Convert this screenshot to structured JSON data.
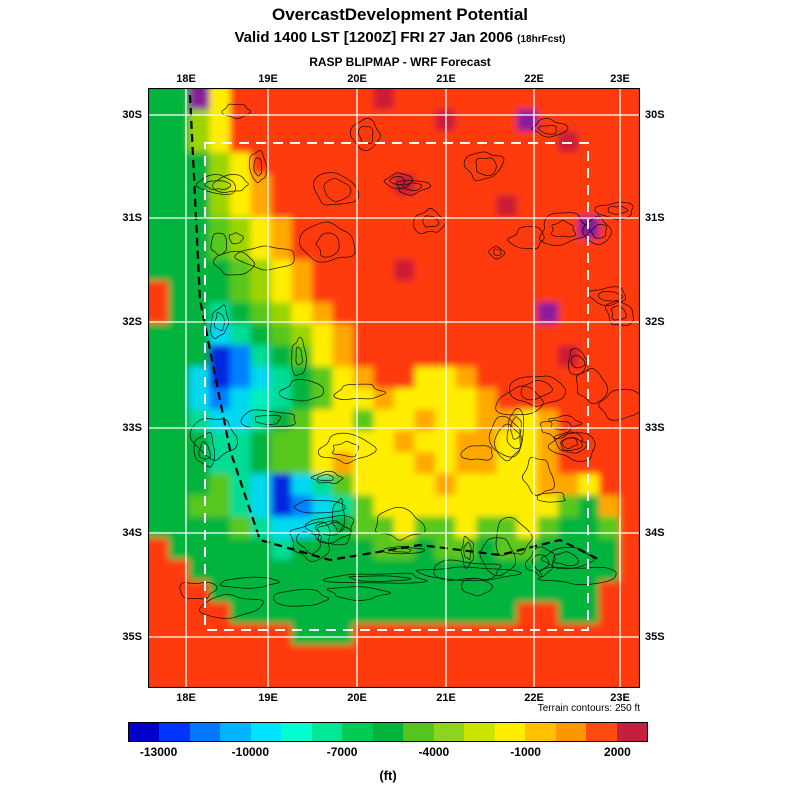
{
  "header": {
    "title": "OvercastDevelopment Potential",
    "valid_line": "Valid 1400 LST [1200Z] FRI 27 Jan 2006",
    "fcst_suffix": "(18hrFcst)",
    "model_line": "RASP BLIPMAP - WRF Forecast"
  },
  "map_note": "Terrain contours: 250 ft",
  "unit_label": "(ft)",
  "chart_data": {
    "type": "heatmap",
    "title": "OvercastDevelopment Potential",
    "subtitle": "Valid 1400 LST [1200Z] FRI 27 Jan 2006 (18hrFcst)",
    "source": "RASP BLIPMAP - WRF Forecast",
    "units": "ft",
    "x_ticks": [
      "18E",
      "19E",
      "20E",
      "21E",
      "22E",
      "23E"
    ],
    "y_ticks": [
      "30S",
      "31S",
      "32S",
      "33S",
      "34S",
      "35S"
    ],
    "grid_on": true,
    "inner_domain_box": "dashed white rectangle spanning approx 18.2E-22.6E, 30.5S-34.9S",
    "terrain_contour_interval_ft": 250,
    "colorbar": {
      "min": -14000,
      "max": 3000,
      "step": 1000,
      "tick_labels": [
        "-13000",
        "-10000",
        "-7000",
        "-4000",
        "-1000",
        "2000"
      ],
      "colors": [
        "#0000c8",
        "#0034ff",
        "#0078ff",
        "#00b4ff",
        "#00e4ff",
        "#00ffd0",
        "#00e896",
        "#00cc55",
        "#00b43c",
        "#55c41e",
        "#8fd41c",
        "#c8e400",
        "#ffee00",
        "#ffc000",
        "#ff9800",
        "#ff4a10",
        "#c41f3e"
      ]
    },
    "value_legend": {
      "B": -12000,
      "b": -10000,
      "C": -8800,
      "c": -8200,
      "T": -7000,
      "G": -5500,
      "g": -4200,
      "Y": -3200,
      "y": -2200,
      "O": 300,
      "R": 1800,
      "r": 2600,
      "P": 3000
    },
    "color_map": {
      "B": "#0026e0",
      "b": "#0080ff",
      "C": "#00d8f0",
      "c": "#00eec0",
      "T": "#00dc96",
      "G": "#00b43c",
      "g": "#58c81e",
      "Y": "#9cd400",
      "y": "#ffee00",
      "O": "#ffa800",
      "R": "#ff3a0c",
      "r": "#cc1f35",
      "P": "#8a1f9c"
    },
    "grid_note": "Approximate sampled field, 24 columns (W to E) x 28 rows (N to S); each character maps to ft via value_legend",
    "grid_rows": [
      "GGPyRRRRRRRrRRRRRRRRRRRR",
      "GGYyRRRRRRRRRRrRRRPRRRRR",
      "GGYyRRRRRRRRRRRRRRRRrRRR",
      "GGGYyRRRRRRRRRRRRRRRRRRR",
      "GGGYyORRRRRRrRRRRRRRRRRR",
      "GGGYyORRRRRRRRRRRrRRRRRR",
      "GGGgYyORRRRRRRRRRRRRRPRR",
      "GGGgYyORRRRRRRRRRRRRRRRR",
      "GGGGgYyORRRRrRRRRRRRRRRR",
      "RGGGgYyORRRRRRRRRRRRRRRR",
      "RGGTGgYyORRRRRRRRRRPRRRR",
      "GGGCTGgYyORRRRRRRRRRRRRR",
      "GGGBbTGgyORRRRRRRRRRrRRR",
      "GGCBbCTGgyORRyyORRRRRRRR",
      "GGCbCcTGgyyOyyyyORRRRRRR",
      "GGTCCTGgyygyyOyyOOyORRRR",
      "GGGTTGggyyyyOyyOOyyORRRR",
      "GGGTTGggyOyyyOyOOyyORRRR",
      "GGGgTCBCTgyyyyOyyyyOOyRR",
      "GGggTCBbCTgyyyyyyyyygGOR",
      "GGGGgTCCTGggyggyggygGGgR",
      "RGGGGGTGGGGggGggGggGGGGR",
      "RRGGGGGGGGGGGGGGGGGGGGGR",
      "RRRGGGGGGGGGGGGGGGGGGGRR",
      "RRRRGGGGGGGGGGGGGGRRGGRR",
      "RRRRRRRGGGRRRRRRRRRRRRRR",
      "RRRRRRRRRRRRRRRRRRRRRRRR",
      "RRRRRRRRRRRRRRRRRRRRRRRR"
    ]
  }
}
